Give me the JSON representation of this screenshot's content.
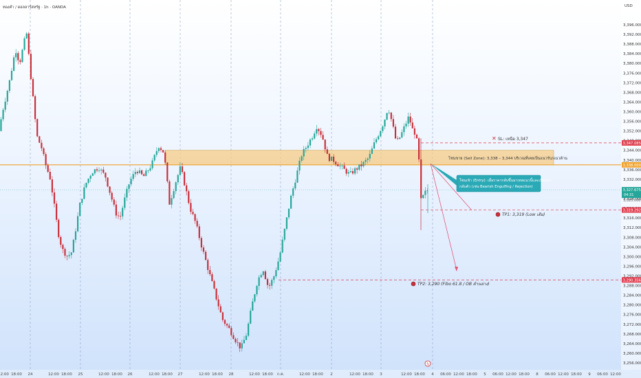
{
  "header": {
    "title": "ทองคำ / ดอลลาร์สหรัฐ · 1h · OANDA",
    "currency": "USD"
  },
  "badges": {
    "sl": "3,347.085",
    "resistance": "3,338.000",
    "price": "3,327.675",
    "countdown": "04:31",
    "price_sub": "3,325.000",
    "tp1": "3,319.292",
    "tp2": "3,290.356"
  },
  "annotations": {
    "sl_label": "SL: เหนือ 3,347",
    "zone_label": "โซนขาย (Sell Zone): 3,338 – 3,344 บริเวณที่เคยเป็นแนวรับ/แนวต้าน",
    "entry_line1": "โซนเข้า (Entry): เมื่อราคากลับขึ้นมาเทสแนวนี้และเกิดแท่ง",
    "entry_line2": "กลับตัว (เช่น Bearish Engulfing / Rejection)",
    "tp1_label": "TP1: 3,319 (Low เดิม)",
    "tp2_label": "TP2: 3,290 (Fibo 61.8 / OB ด้านล่าง)"
  },
  "colors": {
    "up": "#26a69a",
    "down": "#c8303a",
    "zone": "#f5cc86",
    "zone_border": "#d4a54f",
    "resistance": "#f0a22a",
    "dashed": "#e0364a",
    "callout": "#26a8b8",
    "session_line": "#8fa3c7"
  },
  "chart_data": {
    "type": "candlestick",
    "symbol": "XAUUSD",
    "timeframe": "1h",
    "ylim": [
      3256,
      3400
    ],
    "y_ticks": [
      "3,396.000",
      "3,392.000",
      "3,388.000",
      "3,384.000",
      "3,380.000",
      "3,376.000",
      "3,372.000",
      "3,368.000",
      "3,364.000",
      "3,360.000",
      "3,356.000",
      "3,352.000",
      "3,348.000",
      "3,344.000",
      "3,340.000",
      "3,336.000",
      "3,332.000",
      "3,328.000",
      "3,324.000",
      "3,320.000",
      "3,316.000",
      "3,312.000",
      "3,308.000",
      "3,304.000",
      "3,300.000",
      "3,296.000",
      "3,292.000",
      "3,288.000",
      "3,284.000",
      "3,280.000",
      "3,276.000",
      "3,272.000",
      "3,268.000",
      "3,264.000",
      "3,260.000",
      "3,256.000"
    ],
    "x_ticks": [
      {
        "label": "12:00",
        "x": 5
      },
      {
        "label": "18:00",
        "x": 24
      },
      {
        "label": "24",
        "x": 44
      },
      {
        "label": "12:00",
        "x": 78
      },
      {
        "label": "18:00",
        "x": 97
      },
      {
        "label": "25",
        "x": 117
      },
      {
        "label": "12:00",
        "x": 151
      },
      {
        "label": "18:00",
        "x": 170
      },
      {
        "label": "26",
        "x": 189
      },
      {
        "label": "12:00",
        "x": 224
      },
      {
        "label": "18:00",
        "x": 243
      },
      {
        "label": "27",
        "x": 262
      },
      {
        "label": "12:00",
        "x": 297
      },
      {
        "label": "18:00",
        "x": 316
      },
      {
        "label": "28",
        "x": 336
      },
      {
        "label": "12:00",
        "x": 370
      },
      {
        "label": "18:00",
        "x": 389
      },
      {
        "label": "ก.ค.",
        "x": 408
      },
      {
        "label": "12:00",
        "x": 443
      },
      {
        "label": "18:00",
        "x": 462
      },
      {
        "label": "2",
        "x": 482
      },
      {
        "label": "12:00",
        "x": 516
      },
      {
        "label": "18:00",
        "x": 535
      },
      {
        "label": "3",
        "x": 554
      },
      {
        "label": "12:00",
        "x": 591
      },
      {
        "label": "18:00",
        "x": 610
      },
      {
        "label": "4",
        "x": 629
      },
      {
        "label": "06:00",
        "x": 648
      },
      {
        "label": "12:00",
        "x": 667
      },
      {
        "label": "18:00",
        "x": 686
      },
      {
        "label": "5",
        "x": 705
      },
      {
        "label": "06:00",
        "x": 724
      },
      {
        "label": "12:00",
        "x": 743
      },
      {
        "label": "18:00",
        "x": 762
      },
      {
        "label": "8",
        "x": 781
      },
      {
        "label": "06:00",
        "x": 800
      },
      {
        "label": "12:00",
        "x": 819
      },
      {
        "label": "18:00",
        "x": 838
      },
      {
        "label": "9",
        "x": 857
      },
      {
        "label": "06:00",
        "x": 876
      },
      {
        "label": "12:00",
        "x": 895
      }
    ],
    "session_lines_x": [
      44,
      117,
      189,
      262,
      336,
      408,
      482,
      554,
      629
    ],
    "sell_zone": [
      3338,
      3344
    ],
    "resistance_level": 3338,
    "current_price": 3327.675,
    "stop_loss": 3347.085,
    "take_profit_1": 3319.292,
    "take_profit_2": 3290.356,
    "anchors": [
      [
        0,
        3352
      ],
      [
        5,
        3360
      ],
      [
        15,
        3372
      ],
      [
        24,
        3386
      ],
      [
        30,
        3380
      ],
      [
        40,
        3393
      ],
      [
        48,
        3370
      ],
      [
        55,
        3350
      ],
      [
        62,
        3345
      ],
      [
        68,
        3338
      ],
      [
        75,
        3332
      ],
      [
        80,
        3322
      ],
      [
        86,
        3310
      ],
      [
        92,
        3303
      ],
      [
        100,
        3300
      ],
      [
        106,
        3302
      ],
      [
        112,
        3312
      ],
      [
        118,
        3322
      ],
      [
        126,
        3330
      ],
      [
        135,
        3335
      ],
      [
        145,
        3337
      ],
      [
        155,
        3333
      ],
      [
        162,
        3326
      ],
      [
        170,
        3318
      ],
      [
        176,
        3316
      ],
      [
        182,
        3323
      ],
      [
        190,
        3331
      ],
      [
        200,
        3336
      ],
      [
        210,
        3333
      ],
      [
        222,
        3338
      ],
      [
        232,
        3346
      ],
      [
        240,
        3343
      ],
      [
        248,
        3322
      ],
      [
        256,
        3330
      ],
      [
        264,
        3337
      ],
      [
        270,
        3330
      ],
      [
        278,
        3320
      ],
      [
        286,
        3314
      ],
      [
        295,
        3304
      ],
      [
        305,
        3294
      ],
      [
        315,
        3284
      ],
      [
        325,
        3274
      ],
      [
        335,
        3270
      ],
      [
        345,
        3265
      ],
      [
        352,
        3262
      ],
      [
        360,
        3268
      ],
      [
        368,
        3280
      ],
      [
        376,
        3290
      ],
      [
        384,
        3295
      ],
      [
        392,
        3287
      ],
      [
        400,
        3292
      ],
      [
        408,
        3300
      ],
      [
        416,
        3312
      ],
      [
        424,
        3324
      ],
      [
        432,
        3333
      ],
      [
        440,
        3342
      ],
      [
        448,
        3346
      ],
      [
        456,
        3350
      ],
      [
        462,
        3354
      ],
      [
        470,
        3350
      ],
      [
        478,
        3341
      ],
      [
        486,
        3340
      ],
      [
        494,
        3338
      ],
      [
        502,
        3336
      ],
      [
        510,
        3334
      ],
      [
        518,
        3336
      ],
      [
        528,
        3338
      ],
      [
        538,
        3341
      ],
      [
        546,
        3347
      ],
      [
        554,
        3352
      ],
      [
        560,
        3356
      ],
      [
        566,
        3362
      ],
      [
        572,
        3355
      ],
      [
        578,
        3347
      ],
      [
        584,
        3350
      ],
      [
        590,
        3354
      ],
      [
        596,
        3358
      ],
      [
        602,
        3352
      ],
      [
        606,
        3351
      ],
      [
        610,
        3343
      ],
      [
        614,
        3322
      ],
      [
        618,
        3326
      ],
      [
        624,
        3327.675
      ]
    ]
  }
}
